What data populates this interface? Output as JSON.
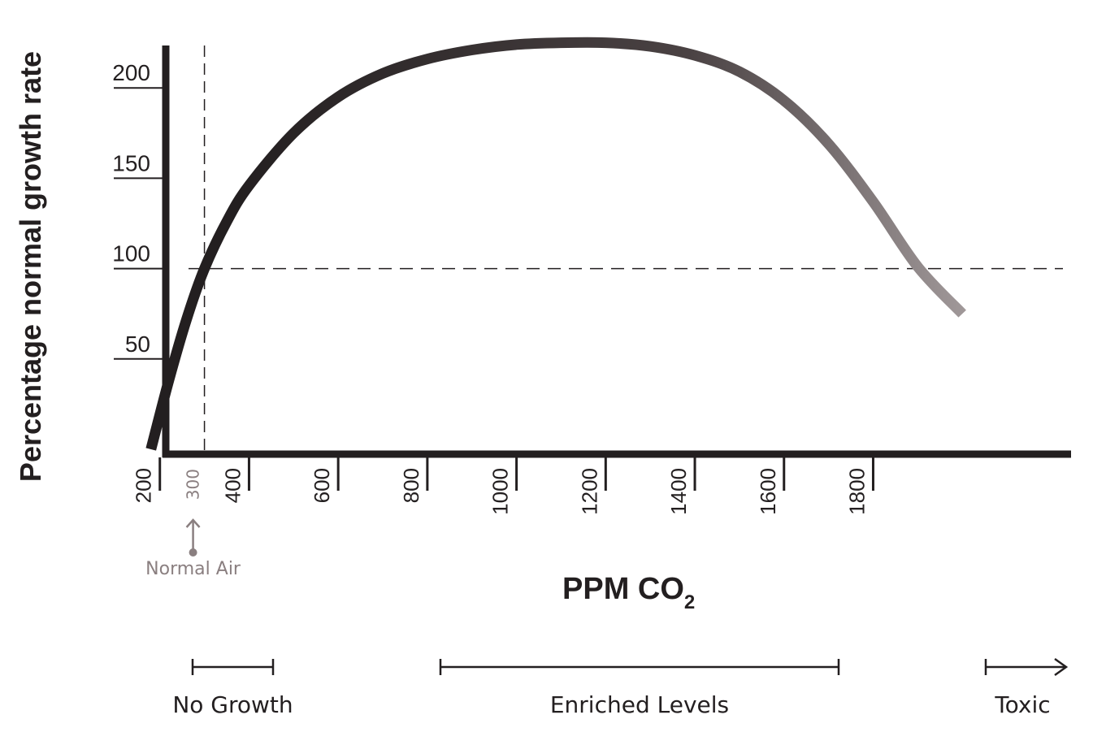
{
  "chart_data": {
    "type": "line",
    "xlabel_main": "PPM CO",
    "xlabel_sub": "2",
    "ylabel": "Percentage normal growth rate",
    "xlim": [
      100,
      2000
    ],
    "ylim": [
      0,
      225
    ],
    "x_ticks": [
      200,
      400,
      600,
      800,
      1000,
      1200,
      1400,
      1600,
      1800
    ],
    "y_ticks": [
      50,
      100,
      150,
      200
    ],
    "series": [
      {
        "x": [
          180,
          220,
          260,
          300,
          350,
          400,
          500,
          600,
          700,
          800,
          900,
          1000,
          1100,
          1200,
          1300,
          1400,
          1500,
          1600,
          1700,
          1800,
          1900,
          2000
        ],
        "y": [
          0,
          38,
          72,
          100,
          126,
          146,
          175,
          195,
          208,
          216,
          221,
          224,
          225,
          225,
          223,
          218,
          209,
          193,
          169,
          137,
          101,
          75
        ],
        "gradient": [
          "#231f20",
          "#beb6b7"
        ]
      }
    ],
    "reference_lines": [
      {
        "orientation": "horizontal",
        "value": 100
      },
      {
        "orientation": "vertical",
        "value": 300
      }
    ],
    "annotation": {
      "x": 300,
      "tick_label": "300",
      "text": "Normal Air"
    },
    "ranges": [
      {
        "label": "No Growth",
        "from": 150,
        "to": 280,
        "open_ended": false
      },
      {
        "label": "Enriched Levels",
        "from": 650,
        "to": 1550,
        "open_ended": false
      },
      {
        "label": "Toxic",
        "from": 1850,
        "to": 2000,
        "open_ended": true
      }
    ],
    "grid": false,
    "legend": "none"
  },
  "colors": {
    "axis": "#231f20",
    "annotation": "#8a7f80",
    "curve_start": "#231f20",
    "curve_end": "#beb6b7"
  }
}
